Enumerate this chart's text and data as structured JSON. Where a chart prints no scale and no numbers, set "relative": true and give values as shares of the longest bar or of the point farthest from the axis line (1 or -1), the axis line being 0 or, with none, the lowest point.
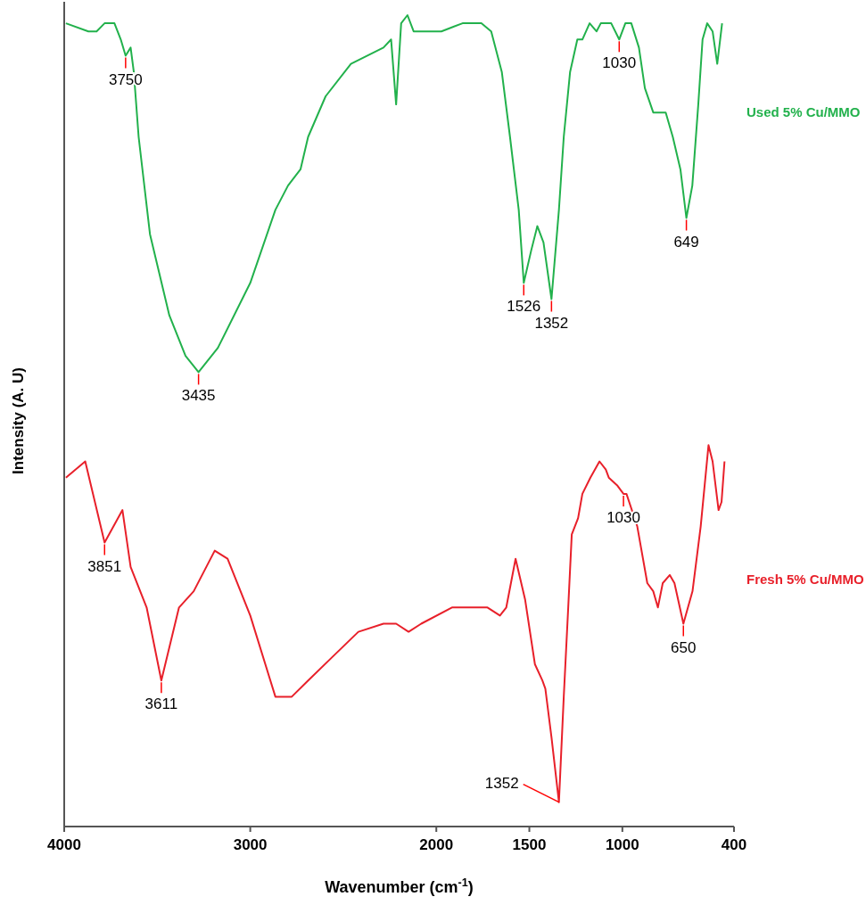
{
  "chart_data": {
    "type": "line",
    "relative": true,
    "xlabel": "Wavenumber (cm$^{-1}$)",
    "ylabel": "Intensity (A. U)",
    "xlim": [
      4000,
      400
    ],
    "xticks": [
      4000,
      3000,
      2000,
      1500,
      1000,
      400
    ],
    "grid": false,
    "legend": false,
    "marker": "none",
    "line_style": "solid",
    "series": [
      {
        "name": "Used 5% Cu/MMO",
        "color": "#22b14c",
        "x": [
          3991,
          3870,
          3826,
          3783,
          3730,
          3696,
          3670,
          3643,
          3626,
          3600,
          3539,
          3435,
          3348,
          3278,
          3174,
          3000,
          2865,
          2797,
          2730,
          2689,
          2595,
          2459,
          2284,
          2243,
          2216,
          2189,
          2155,
          2122,
          1973,
          1859,
          1758,
          1705,
          1648,
          1604,
          1557,
          1530,
          1490,
          1457,
          1424,
          1381,
          1341,
          1315,
          1281,
          1242,
          1215,
          1176,
          1139,
          1116,
          1060,
          1017,
          984,
          952,
          911,
          879,
          834,
          793,
          767,
          729,
          688,
          656,
          624,
          592,
          569,
          544,
          515,
          490,
          464
        ],
        "values": [
          0.99,
          0.98,
          0.98,
          0.99,
          0.99,
          0.97,
          0.95,
          0.96,
          0.93,
          0.85,
          0.73,
          0.63,
          0.58,
          0.56,
          0.59,
          0.67,
          0.76,
          0.79,
          0.81,
          0.85,
          0.9,
          0.94,
          0.96,
          0.97,
          0.89,
          0.99,
          1.0,
          0.98,
          0.98,
          0.99,
          0.99,
          0.98,
          0.93,
          0.85,
          0.76,
          0.67,
          0.71,
          0.74,
          0.72,
          0.65,
          0.76,
          0.85,
          0.93,
          0.97,
          0.97,
          0.99,
          0.98,
          0.99,
          0.99,
          0.97,
          0.99,
          0.99,
          0.96,
          0.91,
          0.88,
          0.88,
          0.88,
          0.85,
          0.81,
          0.75,
          0.79,
          0.89,
          0.97,
          0.99,
          0.98,
          0.94,
          0.99
        ]
      },
      {
        "name": "Fresh 5% Cu/MMO",
        "color": "#e8202a",
        "x": [
          3991,
          3887,
          3783,
          3687,
          3643,
          3557,
          3478,
          3383,
          3304,
          3191,
          3122,
          3000,
          2865,
          2777,
          2689,
          2554,
          2419,
          2284,
          2216,
          2149,
          2081,
          1916,
          1782,
          1725,
          1658,
          1624,
          1574,
          1523,
          1470,
          1430,
          1414,
          1381,
          1341,
          1315,
          1291,
          1272,
          1238,
          1215,
          1172,
          1123,
          1089,
          1073,
          1026,
          994,
          978,
          920,
          866,
          834,
          809,
          783,
          745,
          720,
          672,
          623,
          579,
          537,
          515,
          483,
          467,
          451
        ],
        "values": [
          0.43,
          0.45,
          0.35,
          0.39,
          0.32,
          0.27,
          0.18,
          0.27,
          0.29,
          0.34,
          0.33,
          0.26,
          0.16,
          0.16,
          0.18,
          0.21,
          0.24,
          0.25,
          0.25,
          0.24,
          0.25,
          0.27,
          0.27,
          0.27,
          0.26,
          0.27,
          0.33,
          0.28,
          0.2,
          0.18,
          0.17,
          0.11,
          0.03,
          0.16,
          0.27,
          0.36,
          0.38,
          0.41,
          0.43,
          0.45,
          0.44,
          0.43,
          0.42,
          0.41,
          0.41,
          0.37,
          0.3,
          0.29,
          0.27,
          0.3,
          0.31,
          0.3,
          0.25,
          0.29,
          0.37,
          0.47,
          0.45,
          0.39,
          0.4,
          0.45
        ]
      }
    ],
    "annotations": [
      {
        "text": "3750",
        "x": 3670,
        "y": 0.95
      },
      {
        "text": "3435",
        "x": 3278,
        "y": 0.56
      },
      {
        "text": "1526",
        "x": 1530,
        "y": 0.67
      },
      {
        "text": "1352",
        "x": 1381,
        "y": 0.65
      },
      {
        "text": "1030",
        "x": 1017,
        "y": 0.97
      },
      {
        "text": "649",
        "x": 656,
        "y": 0.75
      },
      {
        "text": "3851",
        "x": 3783,
        "y": 0.35
      },
      {
        "text": "3611",
        "x": 3478,
        "y": 0.18
      },
      {
        "text": "1352",
        "x": 1341,
        "y": 0.03
      },
      {
        "text": "1030",
        "x": 994,
        "y": 0.41
      },
      {
        "text": "650",
        "x": 672,
        "y": 0.25
      }
    ]
  }
}
